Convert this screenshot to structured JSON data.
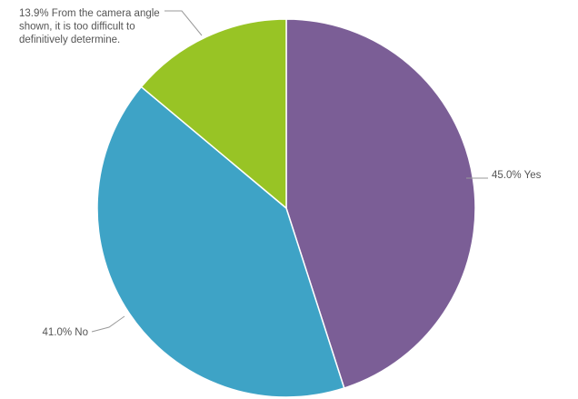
{
  "chart_data": {
    "type": "pie",
    "title": "",
    "start_angle_deg": 0,
    "direction": "clockwise",
    "slices": [
      {
        "label": "Yes",
        "value": 45.0,
        "color": "#7b5e96",
        "label_lines": [
          "45.0% Yes"
        ]
      },
      {
        "label": "No",
        "value": 41.0,
        "color": "#3ea3c6",
        "label_lines": [
          "41.0% No"
        ]
      },
      {
        "label": "From the camera angle shown, it is too difficult to definitively determine.",
        "value": 13.9,
        "color": "#98c425",
        "label_lines": [
          "13.9% From the camera angle",
          "shown, it is too difficult to",
          "definitively determine."
        ]
      }
    ]
  }
}
